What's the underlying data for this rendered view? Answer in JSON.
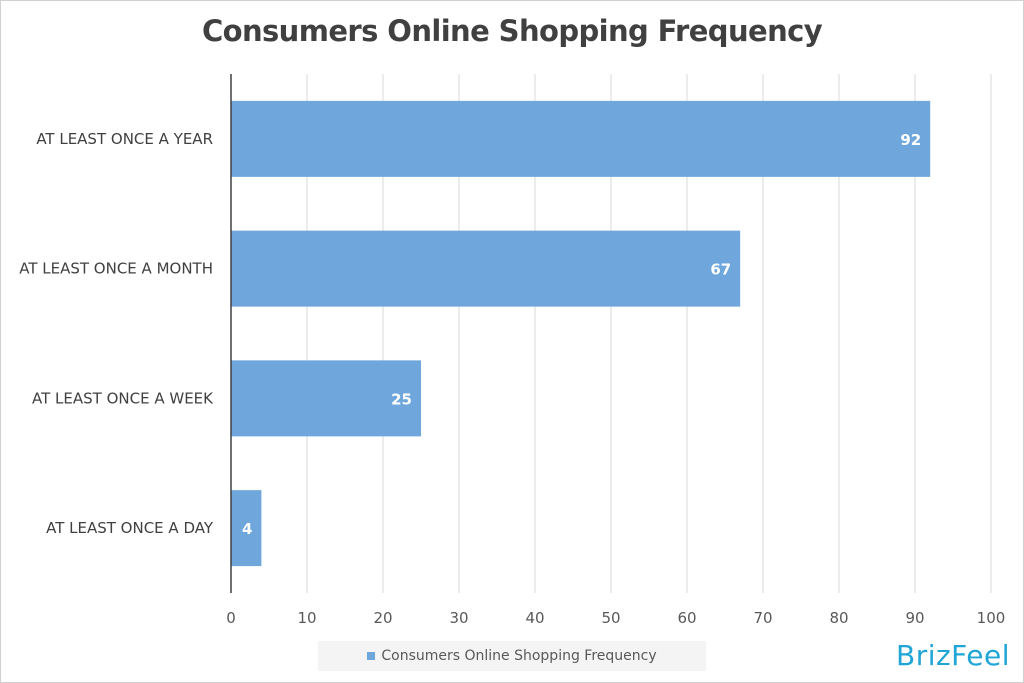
{
  "chart_data": {
    "type": "bar",
    "orientation": "horizontal",
    "title": "Consumers Online Shopping Frequency",
    "categories": [
      "AT LEAST ONCE A YEAR",
      "AT LEAST ONCE A MONTH",
      "AT LEAST ONCE A WEEK",
      "AT LEAST ONCE A DAY"
    ],
    "series": [
      {
        "name": "Consumers Online Shopping Frequency",
        "values": [
          92,
          67,
          25,
          4
        ]
      }
    ],
    "xlim": [
      0,
      100
    ],
    "xticks": [
      "0",
      "10",
      "20",
      "30",
      "40",
      "50",
      "60",
      "70",
      "80",
      "90",
      "100"
    ],
    "grid": "vertical",
    "legend_position": "bottom",
    "bar_color": "#6fa7dc",
    "data_label_color": "#ffffff"
  },
  "brand": {
    "logo_text": "BrizFeel",
    "color": "#1fa6d6"
  }
}
